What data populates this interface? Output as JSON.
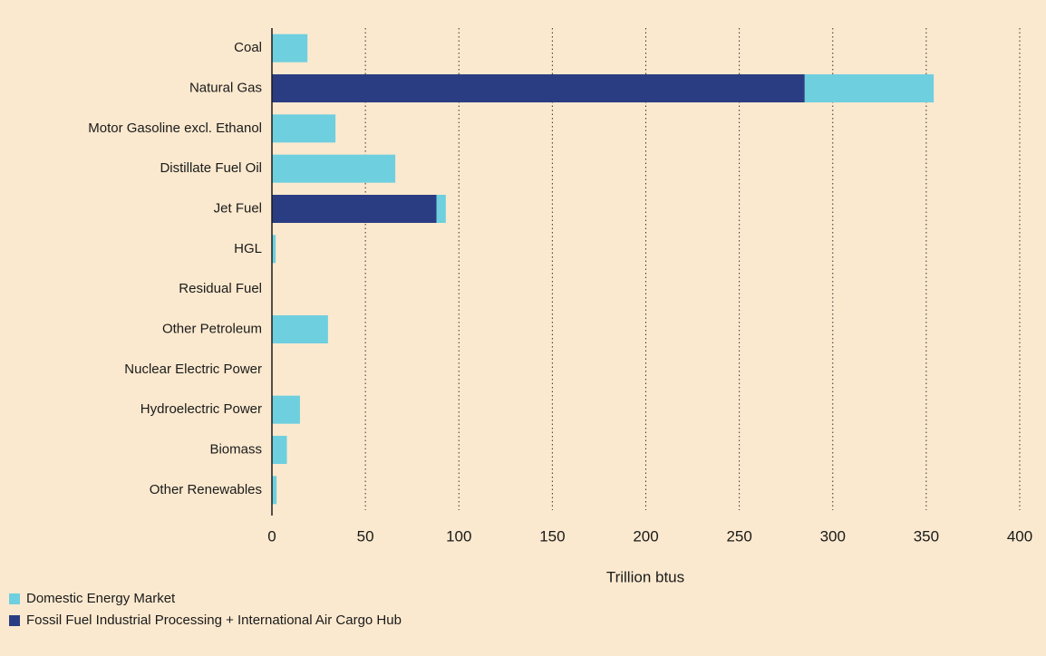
{
  "chart_data": {
    "type": "bar",
    "orientation": "horizontal",
    "stacked": true,
    "x_label": "Trillion btus",
    "categories": [
      "Coal",
      "Natural Gas",
      "Motor Gasoline excl. Ethanol",
      "Distillate Fuel Oil",
      "Jet Fuel",
      "HGL",
      "Residual Fuel",
      "Other Petroleum",
      "Nuclear Electric Power",
      "Hydroelectric Power",
      "Biomass",
      "Other Renewables"
    ],
    "series": [
      {
        "name": "Domestic Energy Market",
        "color": "#6ecfdf",
        "values": [
          19,
          69,
          34,
          66,
          5,
          2,
          0,
          30,
          0,
          15,
          8,
          2.5
        ]
      },
      {
        "name": "Fossil Fuel Industrial Processing + International Air Cargo Hub",
        "color": "#2b3d82",
        "values": [
          0,
          285,
          0,
          0,
          88,
          0,
          0,
          0,
          0,
          0,
          0,
          0
        ]
      }
    ],
    "xlim": [
      0,
      400
    ],
    "xticks": [
      0,
      50,
      100,
      150,
      200,
      250,
      300,
      350,
      400
    ],
    "grid": true
  }
}
